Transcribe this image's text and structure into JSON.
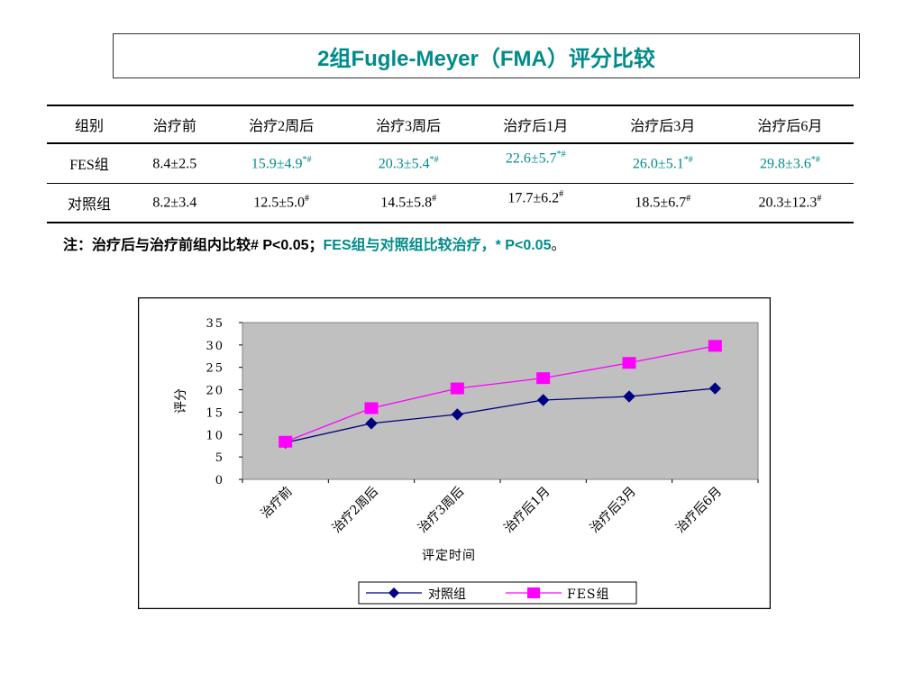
{
  "title": "2组Fugle-Meyer（FMA）评分比较",
  "table": {
    "headers": [
      "组别",
      "治疗前",
      "治疗2周后",
      "治疗3周后",
      "治疗后1月",
      "治疗后3月",
      "治疗后6月"
    ],
    "rows": [
      {
        "group": "FES组",
        "cells": [
          {
            "value": "8.4±2.5",
            "mark": ""
          },
          {
            "value": "15.9±4.9",
            "mark": "*#"
          },
          {
            "value": "20.3±5.4",
            "mark": "*#"
          },
          {
            "value": "22.6±5.7",
            "mark": "*#"
          },
          {
            "value": "26.0±5.1",
            "mark": "*#"
          },
          {
            "value": "29.8±3.6",
            "mark": "*#"
          }
        ]
      },
      {
        "group": "对照组",
        "cells": [
          {
            "value": "8.2±3.4",
            "mark": ""
          },
          {
            "value": "12.5±5.0",
            "mark": "#"
          },
          {
            "value": "14.5±5.8",
            "mark": "#"
          },
          {
            "value": "17.7±6.2",
            "mark": "#"
          },
          {
            "value": "18.5±6.7",
            "mark": "#"
          },
          {
            "value": "20.3±12.3",
            "mark": "#"
          }
        ]
      }
    ]
  },
  "note": {
    "part1": "注：治疗后与治疗前组内比较# P<0.05；",
    "part2": "FES组与对照组比较治疗，* P<0.05",
    "part3": "。"
  },
  "colors": {
    "accent": "#008b8b",
    "control_series": "#000080",
    "fes_series": "#ff00ff",
    "plot_bg": "#c0c0c0"
  },
  "chart_data": {
    "type": "line",
    "categories": [
      "治疗前",
      "治疗2周后",
      "治疗3周后",
      "治疗后1月",
      "治疗后3月",
      "治疗后6月"
    ],
    "series": [
      {
        "name": "对照组",
        "values": [
          8.2,
          12.5,
          14.5,
          17.7,
          18.5,
          20.3
        ],
        "marker": "diamond"
      },
      {
        "name": "FES组",
        "values": [
          8.4,
          15.9,
          20.3,
          22.6,
          26.0,
          29.8
        ],
        "marker": "square"
      }
    ],
    "xlabel": "评定时间",
    "ylabel": "评分",
    "ylim": [
      0,
      35
    ],
    "yticks": [
      0,
      5,
      10,
      15,
      20,
      25,
      30,
      35
    ],
    "legend": "bottom",
    "grid": false
  }
}
